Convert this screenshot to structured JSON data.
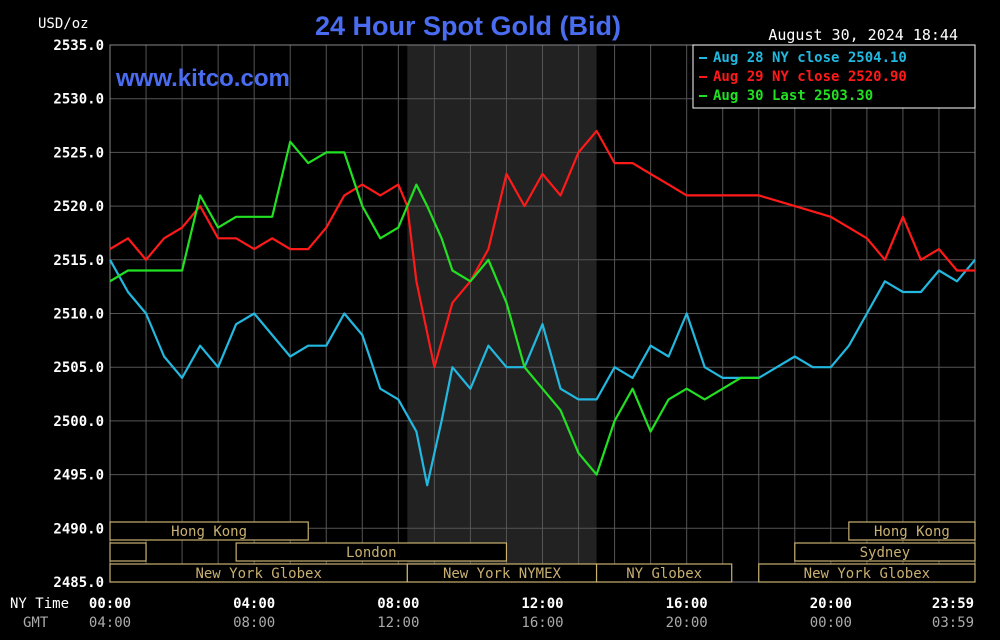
{
  "chart_data": {
    "type": "line",
    "title": "24 Hour Spot Gold (Bid)",
    "watermark": "www.kitco.com",
    "ylabel": "USD/oz",
    "timestamp": "August 30, 2024 18:44",
    "ylim": [
      2485.0,
      2535.0
    ],
    "y_ticks": [
      "2535.0",
      "2530.0",
      "2525.0",
      "2520.0",
      "2515.0",
      "2510.0",
      "2505.0",
      "2500.0",
      "2495.0",
      "2490.0",
      "2485.0"
    ],
    "xlim_hours": [
      0,
      24
    ],
    "x_ticks_ny": [
      "00:00",
      "04:00",
      "08:00",
      "12:00",
      "16:00",
      "20:00",
      "23:59"
    ],
    "x_ticks_gmt": [
      "04:00",
      "08:00",
      "12:00",
      "16:00",
      "20:00",
      "00:00",
      "03:59"
    ],
    "x_axis_names": {
      "ny": "NY Time",
      "gmt": "GMT"
    },
    "grid": true,
    "legend_position": "top-right",
    "nymex_shaded_hours": [
      8.25,
      13.5
    ],
    "sessions": [
      {
        "label": "Hong Kong",
        "start": 0,
        "end": 5.5,
        "row": 1
      },
      {
        "label": "Hong Kong",
        "start": 20.5,
        "end": 24,
        "row": 1
      },
      {
        "label": "",
        "start": 0,
        "end": 1.0,
        "row": 2
      },
      {
        "label": "London",
        "start": 3.5,
        "end": 11.0,
        "row": 2
      },
      {
        "label": "Sydney",
        "start": 19.0,
        "end": 24,
        "row": 2
      },
      {
        "label": "New York Globex",
        "start": 0,
        "end": 8.25,
        "row": 3
      },
      {
        "label": "New York NYMEX",
        "start": 8.25,
        "end": 13.5,
        "row": 3
      },
      {
        "label": "NY Globex",
        "start": 13.5,
        "end": 17.25,
        "row": 3
      },
      {
        "label": "New York Globex",
        "start": 18.0,
        "end": 24,
        "row": 3
      }
    ],
    "series": [
      {
        "name": "Aug 28 NY close 2504.10",
        "color": "#22b8e0",
        "points": [
          [
            0,
            2515
          ],
          [
            0.5,
            2512
          ],
          [
            1,
            2510
          ],
          [
            1.5,
            2506
          ],
          [
            2,
            2504
          ],
          [
            2.5,
            2507
          ],
          [
            3,
            2505
          ],
          [
            3.5,
            2509
          ],
          [
            4,
            2510
          ],
          [
            4.5,
            2508
          ],
          [
            5,
            2506
          ],
          [
            5.5,
            2507
          ],
          [
            6,
            2507
          ],
          [
            6.5,
            2510
          ],
          [
            7,
            2508
          ],
          [
            7.5,
            2503
          ],
          [
            8,
            2502
          ],
          [
            8.5,
            2499
          ],
          [
            8.8,
            2494
          ],
          [
            9.2,
            2500
          ],
          [
            9.5,
            2505
          ],
          [
            10,
            2503
          ],
          [
            10.5,
            2507
          ],
          [
            11,
            2505
          ],
          [
            11.5,
            2505
          ],
          [
            12,
            2509
          ],
          [
            12.5,
            2503
          ],
          [
            13,
            2502
          ],
          [
            13.5,
            2502
          ],
          [
            14,
            2505
          ],
          [
            14.5,
            2504
          ],
          [
            15,
            2507
          ],
          [
            15.5,
            2506
          ],
          [
            16,
            2510
          ],
          [
            16.5,
            2505
          ],
          [
            17,
            2504
          ],
          [
            17.5,
            2504
          ],
          [
            18,
            2504
          ],
          [
            18.5,
            2505
          ],
          [
            19,
            2506
          ],
          [
            19.5,
            2505
          ],
          [
            20,
            2505
          ],
          [
            20.5,
            2507
          ],
          [
            21,
            2510
          ],
          [
            21.5,
            2513
          ],
          [
            22,
            2512
          ],
          [
            22.5,
            2512
          ],
          [
            23,
            2514
          ],
          [
            23.5,
            2513
          ],
          [
            24,
            2515
          ]
        ]
      },
      {
        "name": "Aug 29 NY close 2520.90",
        "color": "#ff1a1a",
        "points": [
          [
            0,
            2516
          ],
          [
            0.5,
            2517
          ],
          [
            1,
            2515
          ],
          [
            1.5,
            2517
          ],
          [
            2,
            2518
          ],
          [
            2.5,
            2520
          ],
          [
            3,
            2517
          ],
          [
            3.5,
            2517
          ],
          [
            4,
            2516
          ],
          [
            4.5,
            2517
          ],
          [
            5,
            2516
          ],
          [
            5.5,
            2516
          ],
          [
            6,
            2518
          ],
          [
            6.5,
            2521
          ],
          [
            7,
            2522
          ],
          [
            7.5,
            2521
          ],
          [
            8,
            2522
          ],
          [
            8.25,
            2520
          ],
          [
            8.5,
            2513
          ],
          [
            9,
            2505
          ],
          [
            9.5,
            2511
          ],
          [
            10,
            2513
          ],
          [
            10.5,
            2516
          ],
          [
            11,
            2523
          ],
          [
            11.5,
            2520
          ],
          [
            12,
            2523
          ],
          [
            12.5,
            2521
          ],
          [
            13,
            2525
          ],
          [
            13.5,
            2527
          ],
          [
            14,
            2524
          ],
          [
            14.5,
            2524
          ],
          [
            15,
            2523
          ],
          [
            15.5,
            2522
          ],
          [
            16,
            2521
          ],
          [
            17,
            2521
          ],
          [
            18,
            2521
          ],
          [
            19,
            2520
          ],
          [
            20,
            2519
          ],
          [
            20.5,
            2518
          ],
          [
            21,
            2517
          ],
          [
            21.5,
            2515
          ],
          [
            22,
            2519
          ],
          [
            22.5,
            2515
          ],
          [
            23,
            2516
          ],
          [
            23.5,
            2514
          ],
          [
            24,
            2514
          ]
        ]
      },
      {
        "name": "Aug 30 Last 2503.30",
        "color": "#22e022",
        "points": [
          [
            0,
            2513
          ],
          [
            0.5,
            2514
          ],
          [
            1,
            2514
          ],
          [
            1.5,
            2514
          ],
          [
            2,
            2514
          ],
          [
            2.5,
            2521
          ],
          [
            3,
            2518
          ],
          [
            3.5,
            2519
          ],
          [
            4,
            2519
          ],
          [
            4.5,
            2519
          ],
          [
            5,
            2526
          ],
          [
            5.5,
            2524
          ],
          [
            6,
            2525
          ],
          [
            6.5,
            2525
          ],
          [
            7,
            2520
          ],
          [
            7.5,
            2517
          ],
          [
            8,
            2518
          ],
          [
            8.5,
            2522
          ],
          [
            8.8,
            2520
          ],
          [
            9.2,
            2517
          ],
          [
            9.5,
            2514
          ],
          [
            10,
            2513
          ],
          [
            10.5,
            2515
          ],
          [
            11,
            2511
          ],
          [
            11.5,
            2505
          ],
          [
            12,
            2503
          ],
          [
            12.5,
            2501
          ],
          [
            13,
            2497
          ],
          [
            13.5,
            2495
          ],
          [
            14,
            2500
          ],
          [
            14.5,
            2503
          ],
          [
            15,
            2499
          ],
          [
            15.5,
            2502
          ],
          [
            16,
            2503
          ],
          [
            16.5,
            2502
          ],
          [
            17,
            2503
          ],
          [
            17.5,
            2504
          ],
          [
            18,
            2504
          ]
        ]
      }
    ]
  }
}
